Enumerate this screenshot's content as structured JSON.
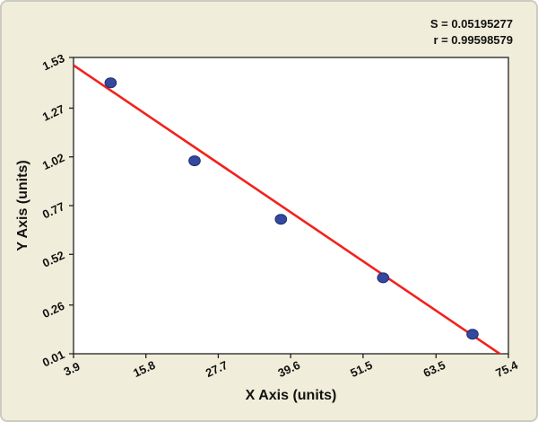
{
  "stats": {
    "s_line": "S = 0.05195277",
    "r_line": "r = 0.99598579"
  },
  "chart_data": {
    "type": "scatter",
    "title": "",
    "xlabel": "X Axis (units)",
    "ylabel": "Y Axis (units)",
    "xlim": [
      3.9,
      75.4
    ],
    "ylim": [
      0.01,
      1.53
    ],
    "grid": false,
    "legend": false,
    "x_ticks": [
      {
        "v": 3.9,
        "label": "3.9"
      },
      {
        "v": 15.8,
        "label": "15.8"
      },
      {
        "v": 27.7,
        "label": "27.7"
      },
      {
        "v": 39.6,
        "label": "39.6"
      },
      {
        "v": 51.5,
        "label": "51.5"
      },
      {
        "v": 63.5,
        "label": "63.5"
      },
      {
        "v": 75.4,
        "label": "75.4"
      }
    ],
    "y_ticks": [
      {
        "v": 0.01,
        "label": "0.01"
      },
      {
        "v": 0.26,
        "label": "0.26"
      },
      {
        "v": 0.52,
        "label": "0.52"
      },
      {
        "v": 0.77,
        "label": "0.77"
      },
      {
        "v": 1.02,
        "label": "1.02"
      },
      {
        "v": 1.27,
        "label": "1.27"
      },
      {
        "v": 1.53,
        "label": "1.53"
      }
    ],
    "points": [
      {
        "x": 10.0,
        "y": 1.4
      },
      {
        "x": 23.8,
        "y": 1.0
      },
      {
        "x": 38.0,
        "y": 0.7
      },
      {
        "x": 54.8,
        "y": 0.4
      },
      {
        "x": 69.5,
        "y": 0.11
      }
    ],
    "regression_line": {
      "x1": 3.9,
      "y1": 1.49,
      "x2": 75.4,
      "y2": -0.02
    },
    "statistics": {
      "S": "0.05195277",
      "r": "0.99598579"
    },
    "colors": {
      "point_fill": "#33489e",
      "point_stroke": "#1c2d6b",
      "line": "#f2221c",
      "plot_bg": "#ffffff",
      "canvas_bg": "#f0edda",
      "axis": "#222222"
    }
  }
}
